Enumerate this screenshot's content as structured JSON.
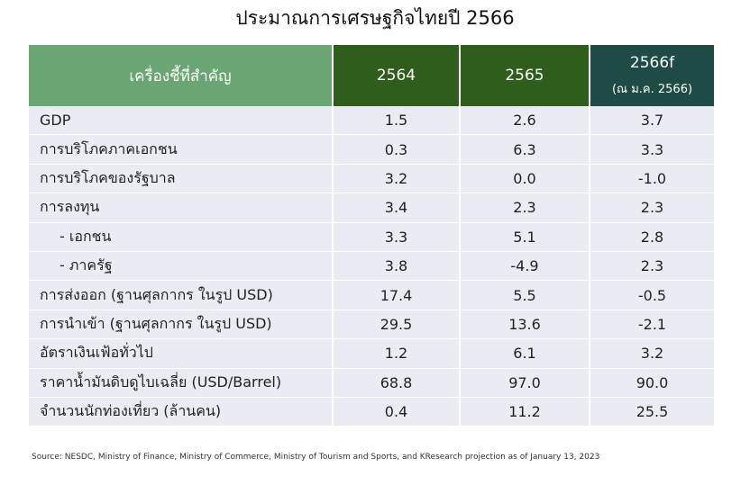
{
  "title": "ประมาณการเศรษฐกิจไทยปี 2566",
  "table": {
    "header": [
      "เครื่องชี้ที่สำคัญ",
      "2564",
      "2565",
      "2566f"
    ],
    "header_note": "(ณ ม.ค. 2566)",
    "rows": [
      [
        "GDP",
        "1.5",
        "2.6",
        "3.7"
      ],
      [
        "การบริโภคภาคเอกชน",
        "0.3",
        "6.3",
        "3.3"
      ],
      [
        "การบริโภคของรัฐบาล",
        "3.2",
        "0.0",
        "-1.0"
      ],
      [
        "การลงทุน",
        "3.4",
        "2.3",
        "2.3"
      ],
      [
        "- เอกชน",
        "3.3",
        "5.1",
        "2.8"
      ],
      [
        "- ภาครัฐ",
        "3.8",
        "-4.9",
        "2.3"
      ],
      [
        "การส่งออก (ฐานศุลกากร ในรูป USD)",
        "17.4",
        "5.5",
        "-0.5"
      ],
      [
        "การนำเข้า (ฐานศุลกากร ในรูป USD)",
        "29.5",
        "13.6",
        "-2.1"
      ],
      [
        "อัตราเงินเฟ้อทั่วไป",
        "1.2",
        "6.1",
        "3.2"
      ],
      [
        "ราคาน้ำมันดิบดูไบเฉลี่ย (USD/Barrel)",
        "68.8",
        "97.0",
        "90.0"
      ],
      [
        "จำนวนนักท่องเที่ยว (ล้านคน)",
        "0.4",
        "11.2",
        "25.5"
      ]
    ]
  },
  "source": "Source: NESDC, Ministry of Finance, Ministry of Commerce, Ministry of Tourism and Sports, and KResearch projection as of January 13, 2023"
}
